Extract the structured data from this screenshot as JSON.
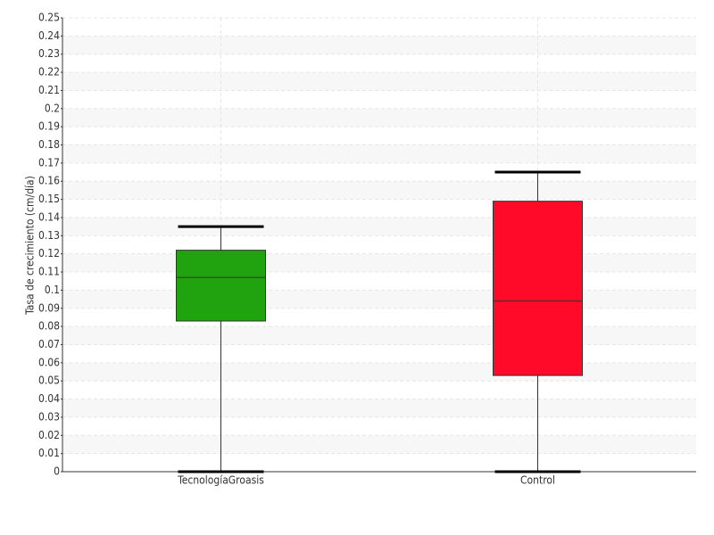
{
  "chart_data": {
    "type": "box",
    "y_label": "Tasa de crecimiento (cm/día)",
    "categories": [
      "TecnologíaGroasis",
      "Control"
    ],
    "boxes": [
      {
        "min": 0,
        "q1": 0.083,
        "median": 0.107,
        "q3": 0.122,
        "max": 0.135,
        "color": "#21a30f"
      },
      {
        "min": 0,
        "q1": 0.053,
        "median": 0.094,
        "q3": 0.149,
        "max": 0.165,
        "color": "#ff0a28"
      }
    ],
    "ylim": [
      0,
      0.25
    ],
    "yticks": [
      0,
      0.01,
      0.02,
      0.03,
      0.04,
      0.05,
      0.06,
      0.07,
      0.08,
      0.09,
      0.1,
      0.11,
      0.12,
      0.13,
      0.14,
      0.15,
      0.16,
      0.17,
      0.18,
      0.19,
      0.2,
      0.21,
      0.22,
      0.23,
      0.24,
      0.25
    ],
    "grid": true
  }
}
